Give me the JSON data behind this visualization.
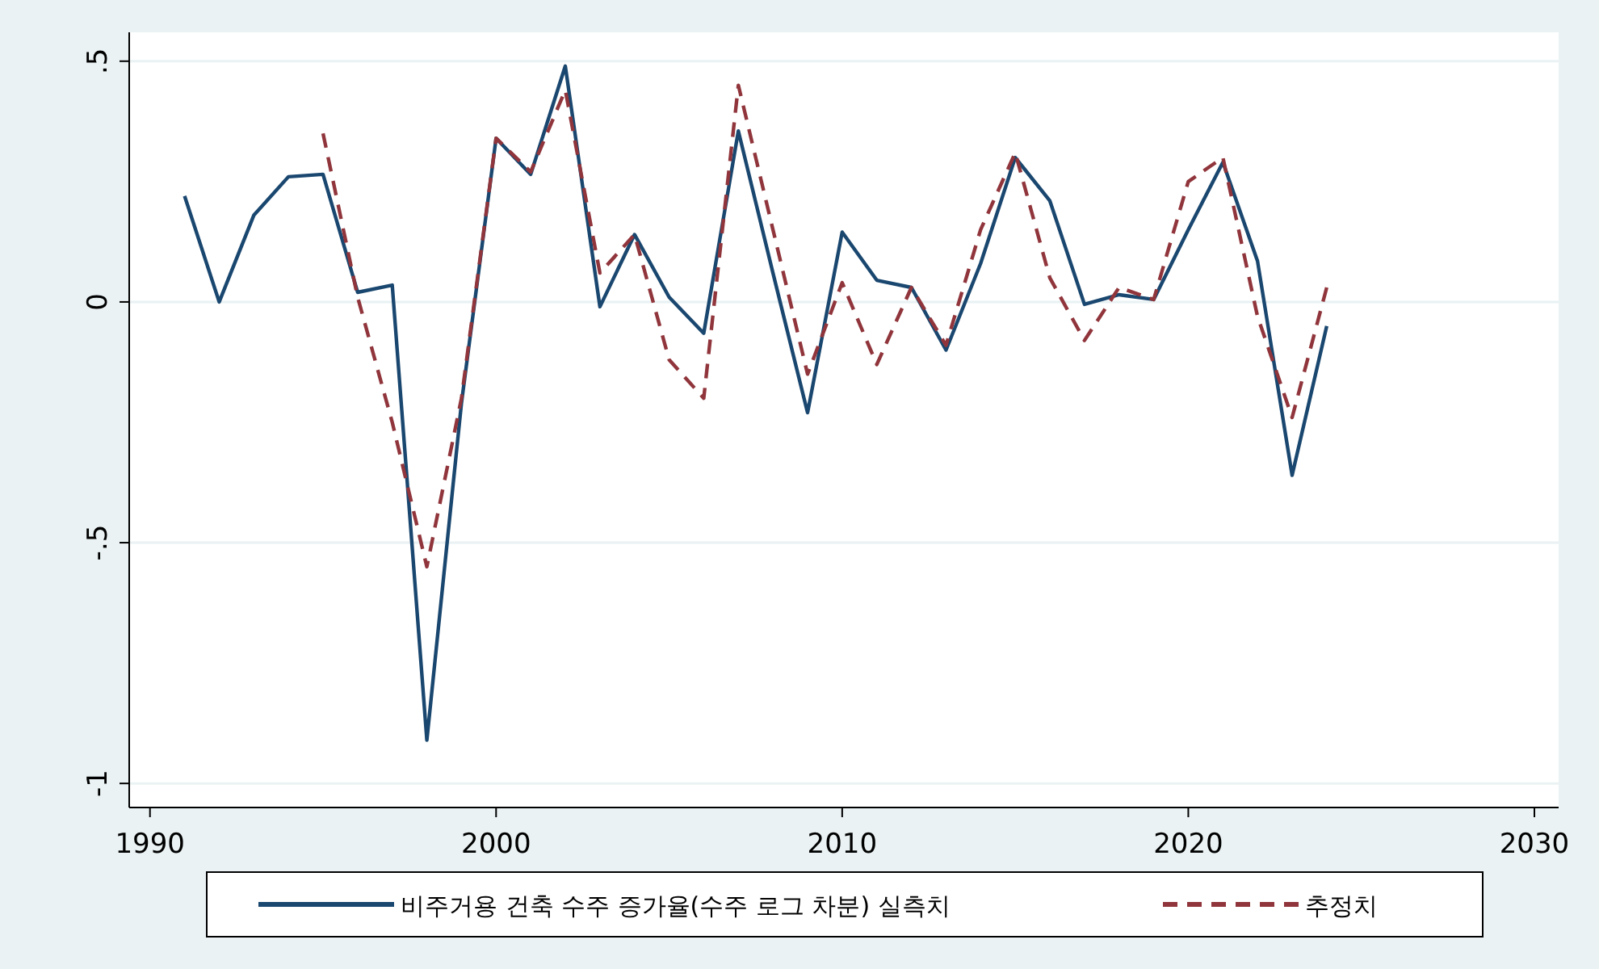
{
  "chart_data": {
    "type": "line",
    "x": [
      1991,
      1992,
      1993,
      1994,
      1995,
      1996,
      1997,
      1998,
      1999,
      2000,
      2001,
      2002,
      2003,
      2004,
      2005,
      2006,
      2007,
      2008,
      2009,
      2010,
      2011,
      2012,
      2013,
      2014,
      2015,
      2016,
      2017,
      2018,
      2019,
      2020,
      2021,
      2022,
      2023,
      2024
    ],
    "series": [
      {
        "name": "비주거용 건축 수주 증가율(수주 로그 차분) 실측치",
        "color": "#1a476f",
        "line_style": "solid",
        "values": [
          0.22,
          0,
          0.18,
          0.26,
          0.265,
          0.02,
          0.035,
          -0.91,
          -0.21,
          0.34,
          0.265,
          0.49,
          -0.01,
          0.14,
          0.01,
          -0.065,
          0.355,
          0.06,
          -0.23,
          0.145,
          0.045,
          0.03,
          -0.1,
          0.08,
          0.3,
          0.21,
          -0.005,
          0.015,
          0.005,
          0.15,
          0.29,
          0.085,
          -0.36,
          -0.05
        ]
      },
      {
        "name": "추정치",
        "color": "#90353b",
        "line_style": "dashed",
        "values": [
          null,
          null,
          null,
          null,
          0.35,
          0.01,
          -0.25,
          -0.55,
          -0.2,
          0.34,
          0.27,
          0.44,
          0.06,
          0.14,
          -0.12,
          -0.2,
          0.45,
          0.15,
          -0.15,
          0.04,
          -0.13,
          0.03,
          -0.09,
          0.15,
          0.31,
          0.05,
          -0.08,
          0.03,
          0.005,
          0.25,
          0.3,
          -0.03,
          -0.24,
          0.03
        ]
      }
    ],
    "xlim": [
      1989.4,
      2030.7
    ],
    "xticks": [
      1990,
      2000,
      2010,
      2020,
      2030
    ],
    "ylim": [
      -1.05,
      0.56
    ],
    "yticks": [
      {
        "value": 0.5,
        "label": ".5"
      },
      0,
      {
        "value": -0.5,
        "label": "-.5"
      },
      -1
    ],
    "grid": "y",
    "legend": "bottom",
    "marker": "none"
  }
}
